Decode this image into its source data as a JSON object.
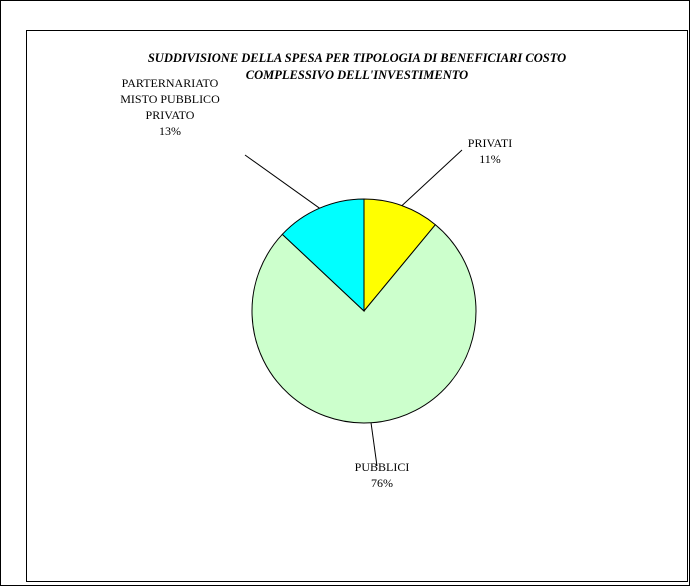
{
  "chart_data": {
    "type": "pie",
    "title": [
      "SUDDIVISIONE DELLA SPESA PER TIPOLOGIA DI BENEFICIARI COSTO",
      "COMPLESSIVO DELL'INVESTIMENTO"
    ],
    "slices": [
      {
        "name": "PRIVATI",
        "value": 11,
        "label_lines": [
          "PRIVATI"
        ],
        "percent_label": "11%",
        "color": "#ffff00"
      },
      {
        "name": "PUBBLICI",
        "value": 76,
        "label_lines": [
          "PUBBLICI"
        ],
        "percent_label": "76%",
        "color": "#ccffcc"
      },
      {
        "name": "PARTERNARIATO MISTO PUBBLICO PRIVATO",
        "value": 13,
        "label_lines": [
          "PARTERNARIATO",
          "MISTO PUBBLICO",
          "PRIVATO"
        ],
        "percent_label": "13%",
        "color": "#00ffff"
      }
    ],
    "start_angle_deg": 0,
    "direction": "clockwise",
    "legend": "none"
  }
}
